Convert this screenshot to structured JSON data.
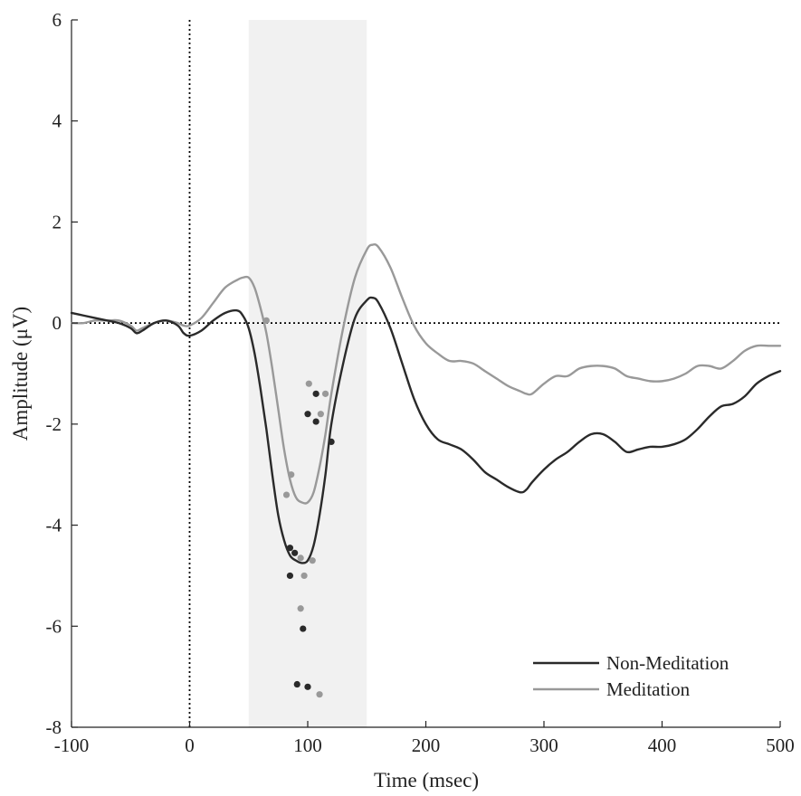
{
  "chart_data": {
    "type": "line",
    "xlabel": "Time (msec)",
    "ylabel": "Amplitude (μV)",
    "xlim": [
      -100,
      500
    ],
    "ylim": [
      -8,
      6
    ],
    "xticks": [
      -100,
      0,
      100,
      200,
      300,
      400,
      500
    ],
    "xtick_labels": [
      "-100",
      "0",
      "100",
      "200",
      "300",
      "400",
      "500"
    ],
    "yticks": [
      -8,
      -6,
      -4,
      -2,
      0,
      2,
      4,
      6
    ],
    "ytick_labels": [
      "-8",
      "-6",
      "-4",
      "-2",
      "0",
      "2",
      "4",
      "6"
    ],
    "grid": false,
    "legend_position": "bottom-right",
    "shaded_region": {
      "x_start": 50,
      "x_end": 150,
      "color": "#f1f1f1"
    },
    "reference_lines": {
      "horizontal_y": 0,
      "vertical_x": 0,
      "style": "dotted"
    },
    "series": [
      {
        "name": "Non-Meditation",
        "color": "#2a2a2a",
        "x": [
          -100,
          -90,
          -80,
          -70,
          -60,
          -50,
          -45,
          -40,
          -30,
          -20,
          -10,
          -5,
          0,
          10,
          20,
          30,
          40,
          45,
          50,
          55,
          60,
          65,
          70,
          75,
          80,
          85,
          90,
          95,
          100,
          105,
          110,
          115,
          120,
          130,
          140,
          150,
          155,
          160,
          170,
          180,
          190,
          200,
          210,
          220,
          230,
          240,
          250,
          260,
          270,
          280,
          285,
          290,
          300,
          310,
          320,
          330,
          340,
          350,
          360,
          370,
          380,
          390,
          400,
          410,
          420,
          430,
          440,
          450,
          460,
          470,
          480,
          490,
          500
        ],
        "values": [
          0.2,
          0.15,
          0.1,
          0.05,
          0.0,
          -0.1,
          -0.2,
          -0.15,
          0.0,
          0.05,
          -0.05,
          -0.2,
          -0.25,
          -0.15,
          0.05,
          0.2,
          0.25,
          0.15,
          -0.1,
          -0.6,
          -1.3,
          -2.1,
          -3.0,
          -3.8,
          -4.3,
          -4.6,
          -4.7,
          -4.75,
          -4.7,
          -4.4,
          -3.8,
          -3.0,
          -2.0,
          -0.8,
          0.1,
          0.45,
          0.5,
          0.4,
          -0.1,
          -0.8,
          -1.5,
          -2.0,
          -2.3,
          -2.4,
          -2.5,
          -2.7,
          -2.95,
          -3.1,
          -3.25,
          -3.35,
          -3.3,
          -3.15,
          -2.9,
          -2.7,
          -2.55,
          -2.35,
          -2.2,
          -2.2,
          -2.35,
          -2.55,
          -2.5,
          -2.45,
          -2.45,
          -2.4,
          -2.3,
          -2.1,
          -1.85,
          -1.65,
          -1.6,
          -1.45,
          -1.2,
          -1.05,
          -0.95
        ]
      },
      {
        "name": "Meditation",
        "color": "#999999",
        "x": [
          -100,
          -90,
          -80,
          -70,
          -60,
          -50,
          -45,
          -40,
          -30,
          -20,
          -10,
          -5,
          0,
          10,
          20,
          30,
          40,
          45,
          50,
          55,
          60,
          65,
          70,
          75,
          80,
          85,
          90,
          95,
          100,
          105,
          110,
          115,
          120,
          130,
          140,
          150,
          155,
          160,
          170,
          180,
          190,
          200,
          210,
          220,
          230,
          240,
          250,
          260,
          270,
          280,
          285,
          290,
          300,
          310,
          320,
          330,
          340,
          350,
          360,
          370,
          380,
          390,
          400,
          410,
          420,
          430,
          440,
          450,
          460,
          470,
          480,
          490,
          500
        ],
        "values": [
          0.0,
          0.0,
          0.05,
          0.05,
          0.05,
          -0.05,
          -0.15,
          -0.1,
          0.0,
          0.05,
          0.0,
          -0.05,
          -0.05,
          0.1,
          0.4,
          0.7,
          0.85,
          0.9,
          0.9,
          0.7,
          0.3,
          -0.2,
          -0.9,
          -1.7,
          -2.5,
          -3.1,
          -3.45,
          -3.55,
          -3.55,
          -3.35,
          -2.85,
          -2.2,
          -1.4,
          -0.1,
          0.9,
          1.45,
          1.55,
          1.5,
          1.1,
          0.5,
          -0.05,
          -0.4,
          -0.6,
          -0.75,
          -0.75,
          -0.8,
          -0.95,
          -1.1,
          -1.25,
          -1.35,
          -1.4,
          -1.4,
          -1.2,
          -1.05,
          -1.05,
          -0.9,
          -0.85,
          -0.85,
          -0.9,
          -1.05,
          -1.1,
          -1.15,
          -1.15,
          -1.1,
          -1.0,
          -0.85,
          -0.85,
          -0.9,
          -0.75,
          -0.55,
          -0.45,
          -0.45,
          -0.45
        ]
      }
    ],
    "scatter_points": {
      "Non-Meditation": [
        [
          85,
          -4.45
        ],
        [
          89,
          -4.55
        ],
        [
          85,
          -5.0
        ],
        [
          100,
          -1.8
        ],
        [
          107,
          -1.4
        ],
        [
          107,
          -1.95
        ],
        [
          120,
          -2.35
        ],
        [
          96,
          -6.05
        ],
        [
          91,
          -7.15
        ],
        [
          100,
          -7.2
        ]
      ],
      "Meditation": [
        [
          65,
          0.05
        ],
        [
          82,
          -3.4
        ],
        [
          86,
          -3.0
        ],
        [
          94,
          -4.65
        ],
        [
          104,
          -4.7
        ],
        [
          97,
          -5.0
        ],
        [
          94,
          -5.65
        ],
        [
          101,
          -1.2
        ],
        [
          115,
          -1.4
        ],
        [
          111,
          -1.8
        ],
        [
          110,
          -7.35
        ]
      ]
    }
  }
}
